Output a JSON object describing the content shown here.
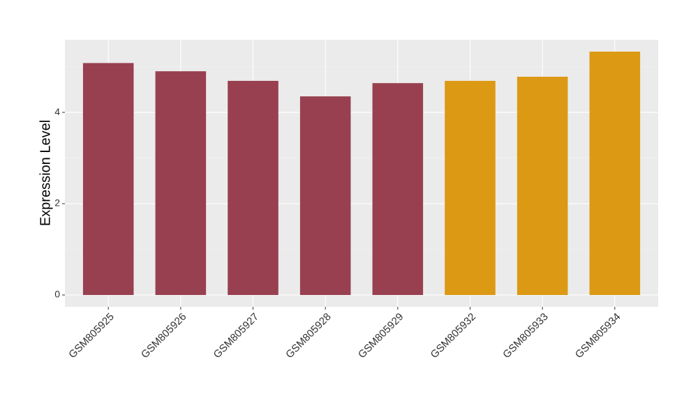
{
  "chart_data": {
    "type": "bar",
    "y_label": "Expression Level",
    "categories": [
      "GSM805925",
      "GSM805926",
      "GSM805927",
      "GSM805928",
      "GSM805929",
      "GSM805932",
      "GSM805933",
      "GSM805934"
    ],
    "values": [
      5.08,
      4.9,
      4.69,
      4.35,
      4.64,
      4.69,
      4.78,
      5.33
    ],
    "colors": [
      "#98404f",
      "#98404f",
      "#98404f",
      "#98404f",
      "#98404f",
      "#dc9914",
      "#dc9914",
      "#dc9914"
    ],
    "ylim": [
      -0.26,
      5.59
    ],
    "yticks": [
      0,
      2,
      4
    ],
    "grid": true,
    "minor_grid": true
  }
}
